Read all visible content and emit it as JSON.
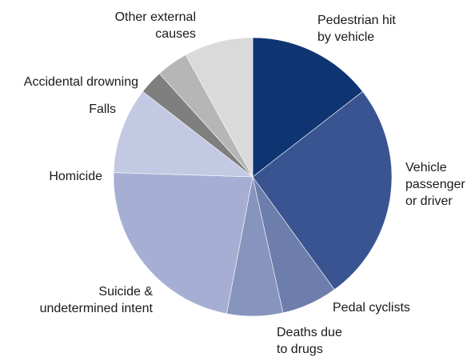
{
  "chart_data": {
    "type": "pie",
    "start_angle_deg": 0,
    "direction": "clockwise",
    "slices": [
      {
        "label": [
          "Pedestrian hit",
          "by vehicle"
        ],
        "value": 14.5,
        "color": "#0f3472"
      },
      {
        "label": [
          "Vehicle",
          "passenger",
          "or driver"
        ],
        "value": 25.5,
        "color": "#3a5491"
      },
      {
        "label": [
          "Pedal cyclists"
        ],
        "value": 6.5,
        "color": "#6d7eac"
      },
      {
        "label": [
          "Deaths due",
          "to drugs"
        ],
        "value": 6.5,
        "color": "#8794bd"
      },
      {
        "label": [
          "Suicide &",
          "undetermined intent"
        ],
        "value": 22.5,
        "color": "#a6afd3"
      },
      {
        "label": [
          "Homicide"
        ],
        "value": 10.0,
        "color": "#c3c9e3"
      },
      {
        "label": [
          "Falls"
        ],
        "value": 2.8,
        "color": "#7f7f7f"
      },
      {
        "label": [
          "Accidental drowning"
        ],
        "value": 3.7,
        "color": "#b6b6b6"
      },
      {
        "label": [
          "Other external",
          "causes"
        ],
        "value": 8.0,
        "color": "#dadada"
      }
    ]
  }
}
